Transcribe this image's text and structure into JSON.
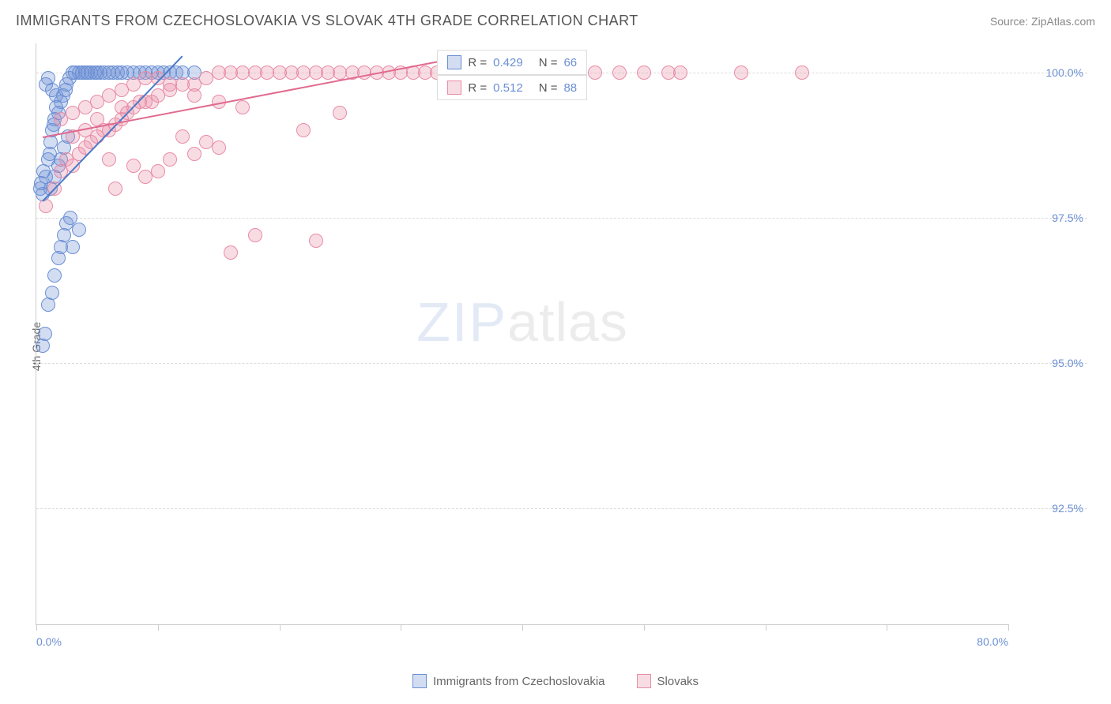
{
  "title": "IMMIGRANTS FROM CZECHOSLOVAKIA VS SLOVAK 4TH GRADE CORRELATION CHART",
  "source": "Source: ZipAtlas.com",
  "ylabel": "4th Grade",
  "watermark_zip": "ZIP",
  "watermark_atlas": "atlas",
  "chart": {
    "type": "scatter",
    "background_color": "#ffffff",
    "grid_color": "#dddddd",
    "axis_color": "#cccccc",
    "tick_label_color": "#6b8fd4",
    "tick_fontsize": 14,
    "xlim": [
      0,
      80
    ],
    "ylim": [
      90.5,
      100.5
    ],
    "xticks": [
      0,
      10,
      20,
      30,
      40,
      50,
      60,
      70,
      80
    ],
    "xtick_labels_shown": {
      "0": "0.0%",
      "80": "80.0%"
    },
    "yticks": [
      92.5,
      95.0,
      97.5,
      100.0
    ],
    "ytick_labels": [
      "92.5%",
      "95.0%",
      "97.5%",
      "100.0%"
    ],
    "marker_radius": 9,
    "marker_stroke_width": 1.5,
    "series": [
      {
        "name": "Immigrants from Czechoslovakia",
        "fill_color": "rgba(107,143,212,0.30)",
        "stroke_color": "#6b8fd4",
        "R": "0.429",
        "N": "66",
        "trend": {
          "x1": 0.5,
          "y1": 97.8,
          "x2": 12,
          "y2": 100.3,
          "color": "#4a7bc8",
          "width": 2
        },
        "points": [
          [
            0.3,
            98.0
          ],
          [
            0.4,
            98.1
          ],
          [
            0.5,
            97.9
          ],
          [
            0.6,
            98.3
          ],
          [
            0.8,
            98.2
          ],
          [
            1.0,
            98.5
          ],
          [
            1.1,
            98.6
          ],
          [
            1.2,
            98.8
          ],
          [
            1.3,
            99.0
          ],
          [
            1.4,
            99.1
          ],
          [
            1.5,
            99.2
          ],
          [
            1.6,
            99.4
          ],
          [
            1.8,
            99.3
          ],
          [
            2.0,
            99.5
          ],
          [
            2.2,
            99.6
          ],
          [
            2.4,
            99.7
          ],
          [
            2.5,
            99.8
          ],
          [
            2.7,
            99.9
          ],
          [
            3.0,
            100.0
          ],
          [
            3.2,
            100.0
          ],
          [
            3.5,
            100.0
          ],
          [
            3.8,
            100.0
          ],
          [
            4.0,
            100.0
          ],
          [
            4.2,
            100.0
          ],
          [
            4.5,
            100.0
          ],
          [
            4.8,
            100.0
          ],
          [
            5.0,
            100.0
          ],
          [
            5.3,
            100.0
          ],
          [
            5.6,
            100.0
          ],
          [
            6.0,
            100.0
          ],
          [
            6.3,
            100.0
          ],
          [
            6.7,
            100.0
          ],
          [
            7.0,
            100.0
          ],
          [
            7.5,
            100.0
          ],
          [
            8.0,
            100.0
          ],
          [
            8.5,
            100.0
          ],
          [
            9.0,
            100.0
          ],
          [
            9.5,
            100.0
          ],
          [
            10.0,
            100.0
          ],
          [
            10.5,
            100.0
          ],
          [
            11.0,
            100.0
          ],
          [
            11.5,
            100.0
          ],
          [
            12.0,
            100.0
          ],
          [
            13.0,
            100.0
          ],
          [
            0.5,
            95.3
          ],
          [
            0.7,
            95.5
          ],
          [
            1.0,
            96.0
          ],
          [
            1.3,
            96.2
          ],
          [
            1.5,
            96.5
          ],
          [
            1.8,
            96.8
          ],
          [
            2.0,
            97.0
          ],
          [
            2.3,
            97.2
          ],
          [
            2.5,
            97.4
          ],
          [
            2.8,
            97.5
          ],
          [
            3.0,
            97.0
          ],
          [
            3.5,
            97.3
          ],
          [
            1.2,
            98.0
          ],
          [
            1.5,
            98.2
          ],
          [
            1.8,
            98.4
          ],
          [
            2.0,
            98.5
          ],
          [
            2.3,
            98.7
          ],
          [
            2.6,
            98.9
          ],
          [
            0.8,
            99.8
          ],
          [
            1.0,
            99.9
          ],
          [
            1.3,
            99.7
          ],
          [
            1.6,
            99.6
          ]
        ]
      },
      {
        "name": "Slovaks",
        "fill_color": "rgba(232,140,165,0.30)",
        "stroke_color": "#e88ca5",
        "R": "0.512",
        "N": "88",
        "trend": {
          "x1": 0.5,
          "y1": 98.9,
          "x2": 33,
          "y2": 100.2,
          "color": "#e06b8f",
          "width": 2
        },
        "points": [
          [
            0.8,
            97.7
          ],
          [
            1.5,
            98.0
          ],
          [
            2.0,
            98.3
          ],
          [
            2.5,
            98.5
          ],
          [
            3.0,
            98.4
          ],
          [
            3.5,
            98.6
          ],
          [
            4.0,
            98.7
          ],
          [
            4.5,
            98.8
          ],
          [
            5.0,
            98.9
          ],
          [
            5.5,
            99.0
          ],
          [
            6.0,
            99.0
          ],
          [
            6.5,
            99.1
          ],
          [
            7.0,
            99.2
          ],
          [
            7.5,
            99.3
          ],
          [
            8.0,
            99.4
          ],
          [
            8.5,
            99.5
          ],
          [
            9.0,
            99.5
          ],
          [
            9.5,
            99.5
          ],
          [
            10.0,
            99.6
          ],
          [
            11.0,
            99.7
          ],
          [
            12.0,
            99.8
          ],
          [
            13.0,
            99.8
          ],
          [
            14.0,
            99.9
          ],
          [
            15.0,
            100.0
          ],
          [
            16.0,
            100.0
          ],
          [
            17.0,
            100.0
          ],
          [
            18.0,
            100.0
          ],
          [
            19.0,
            100.0
          ],
          [
            20.0,
            100.0
          ],
          [
            21.0,
            100.0
          ],
          [
            22.0,
            100.0
          ],
          [
            23.0,
            100.0
          ],
          [
            24.0,
            100.0
          ],
          [
            25.0,
            100.0
          ],
          [
            26.0,
            100.0
          ],
          [
            27.0,
            100.0
          ],
          [
            28.0,
            100.0
          ],
          [
            29.0,
            100.0
          ],
          [
            30.0,
            100.0
          ],
          [
            31.0,
            100.0
          ],
          [
            32.0,
            100.0
          ],
          [
            33.0,
            100.0
          ],
          [
            34.0,
            100.0
          ],
          [
            35.0,
            100.0
          ],
          [
            36.0,
            100.0
          ],
          [
            38.0,
            100.0
          ],
          [
            40.0,
            100.0
          ],
          [
            42.0,
            100.0
          ],
          [
            44.0,
            100.0
          ],
          [
            46.0,
            100.0
          ],
          [
            48.0,
            100.0
          ],
          [
            50.0,
            100.0
          ],
          [
            52.0,
            100.0
          ],
          [
            53.0,
            100.0
          ],
          [
            58.0,
            100.0
          ],
          [
            63.0,
            100.0
          ],
          [
            2.0,
            99.2
          ],
          [
            3.0,
            99.3
          ],
          [
            4.0,
            99.4
          ],
          [
            5.0,
            99.5
          ],
          [
            6.0,
            99.6
          ],
          [
            7.0,
            99.7
          ],
          [
            8.0,
            99.8
          ],
          [
            9.0,
            99.9
          ],
          [
            10.0,
            99.9
          ],
          [
            11.0,
            99.8
          ],
          [
            13.0,
            99.6
          ],
          [
            15.0,
            99.5
          ],
          [
            17.0,
            99.4
          ],
          [
            12.0,
            98.9
          ],
          [
            14.0,
            98.8
          ],
          [
            6.0,
            98.5
          ],
          [
            8.0,
            98.4
          ],
          [
            10.0,
            98.3
          ],
          [
            4.0,
            99.0
          ],
          [
            6.5,
            98.0
          ],
          [
            9.0,
            98.2
          ],
          [
            3.0,
            98.9
          ],
          [
            5.0,
            99.2
          ],
          [
            7.0,
            99.4
          ],
          [
            18.0,
            97.2
          ],
          [
            16.0,
            96.9
          ],
          [
            23.0,
            97.1
          ],
          [
            11.0,
            98.5
          ],
          [
            13.0,
            98.6
          ],
          [
            15.0,
            98.7
          ],
          [
            22.0,
            99.0
          ],
          [
            25.0,
            99.3
          ]
        ]
      }
    ]
  },
  "legend_box": {
    "r_label": "R =",
    "n_label": "N ="
  },
  "bottom_legend": [
    {
      "label": "Immigrants from Czechoslovakia",
      "fill": "rgba(107,143,212,0.30)",
      "stroke": "#6b8fd4"
    },
    {
      "label": "Slovaks",
      "fill": "rgba(232,140,165,0.30)",
      "stroke": "#e88ca5"
    }
  ]
}
